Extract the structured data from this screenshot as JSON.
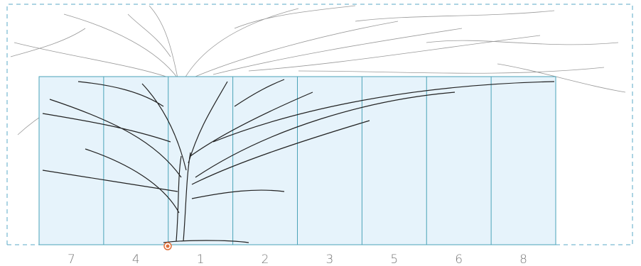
{
  "panel_labels": [
    "7",
    "4",
    "1",
    "2",
    "3",
    "5",
    "6",
    "8"
  ]
}
